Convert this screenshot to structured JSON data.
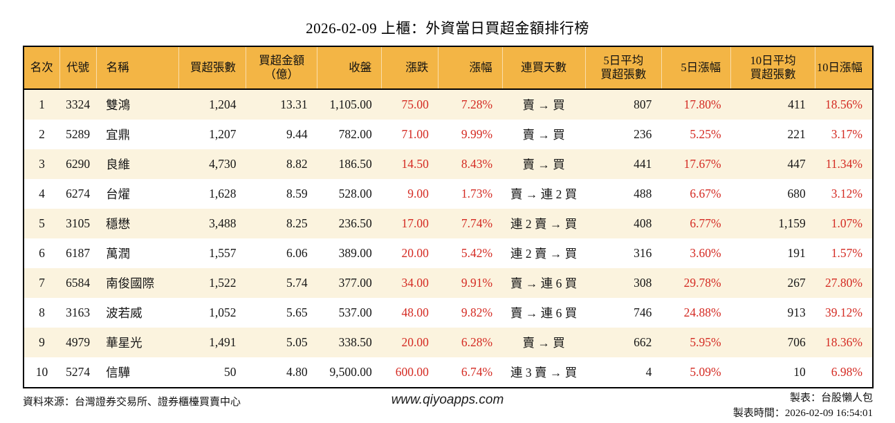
{
  "title": "2026-02-09 上櫃：外資當日買超金額排行榜",
  "table": {
    "headers": [
      {
        "line1": "名次",
        "line2": ""
      },
      {
        "line1": "代號",
        "line2": ""
      },
      {
        "line1": "名稱",
        "line2": ""
      },
      {
        "line1": "買超張數",
        "line2": ""
      },
      {
        "line1": "買超金額",
        "line2": "（億）"
      },
      {
        "line1": "收盤",
        "line2": ""
      },
      {
        "line1": "漲跌",
        "line2": ""
      },
      {
        "line1": "漲幅",
        "line2": ""
      },
      {
        "line1": "連買天數",
        "line2": ""
      },
      {
        "line1": "5日平均",
        "line2": "買超張數"
      },
      {
        "line1": "5日漲幅",
        "line2": ""
      },
      {
        "line1": "10日平均",
        "line2": "買超張數"
      },
      {
        "line1": "10日漲幅",
        "line2": ""
      }
    ],
    "rows": [
      [
        "1",
        "3324",
        "雙鴻",
        "1,204",
        "13.31",
        "1,105.00",
        "75.00",
        "7.28%",
        "賣 → 買",
        "807",
        "17.80%",
        "411",
        "18.56%"
      ],
      [
        "2",
        "5289",
        "宜鼎",
        "1,207",
        "9.44",
        "782.00",
        "71.00",
        "9.99%",
        "賣 → 買",
        "236",
        "5.25%",
        "221",
        "3.17%"
      ],
      [
        "3",
        "6290",
        "良維",
        "4,730",
        "8.82",
        "186.50",
        "14.50",
        "8.43%",
        "賣 → 買",
        "441",
        "17.67%",
        "447",
        "11.34%"
      ],
      [
        "4",
        "6274",
        "台燿",
        "1,628",
        "8.59",
        "528.00",
        "9.00",
        "1.73%",
        "賣 → 連 2 買",
        "488",
        "6.67%",
        "680",
        "3.12%"
      ],
      [
        "5",
        "3105",
        "穩懋",
        "3,488",
        "8.25",
        "236.50",
        "17.00",
        "7.74%",
        "連 2 賣 → 買",
        "408",
        "6.77%",
        "1,159",
        "1.07%"
      ],
      [
        "6",
        "6187",
        "萬潤",
        "1,557",
        "6.06",
        "389.00",
        "20.00",
        "5.42%",
        "連 2 賣 → 買",
        "316",
        "3.60%",
        "191",
        "1.57%"
      ],
      [
        "7",
        "6584",
        "南俊國際",
        "1,522",
        "5.74",
        "377.00",
        "34.00",
        "9.91%",
        "賣 → 連 6 買",
        "308",
        "29.78%",
        "267",
        "27.80%"
      ],
      [
        "8",
        "3163",
        "波若威",
        "1,052",
        "5.65",
        "537.00",
        "48.00",
        "9.82%",
        "賣 → 連 6 買",
        "746",
        "24.88%",
        "913",
        "39.12%"
      ],
      [
        "9",
        "4979",
        "華星光",
        "1,491",
        "5.05",
        "338.50",
        "20.00",
        "6.28%",
        "賣 → 買",
        "662",
        "5.95%",
        "706",
        "18.36%"
      ],
      [
        "10",
        "5274",
        "信驊",
        "50",
        "4.80",
        "9,500.00",
        "600.00",
        "6.74%",
        "連 3 賣 → 買",
        "4",
        "5.09%",
        "10",
        "6.98%"
      ]
    ]
  },
  "footer": {
    "source": "資料來源：台灣證券交易所、證券櫃檯買賣中心",
    "website": "www.qiyoapps.com",
    "maker": "製表：台股懶人包",
    "made_time": "製表時間：2026-02-09 16:54:01"
  },
  "colors": {
    "header_bg": "#f3b545",
    "row_alt": "#fbf3de",
    "red": "#d42a22"
  }
}
